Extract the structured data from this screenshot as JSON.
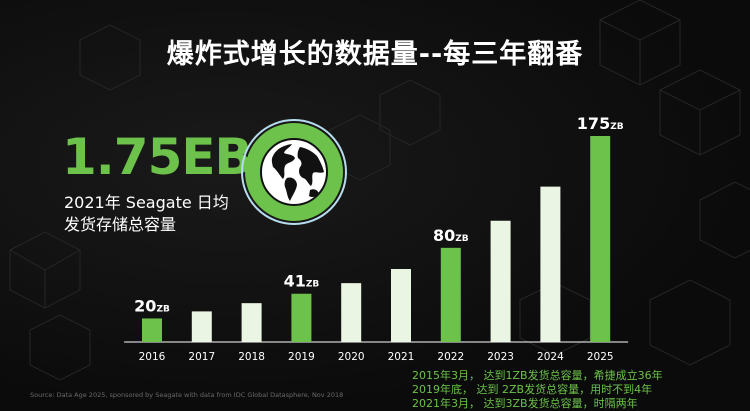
{
  "title": "爆炸式增长的数据量--每三年翻番",
  "stat": {
    "value": "1.75EB",
    "description": "2021年 Seagate 日均发货存储总容量"
  },
  "notes": [
    "2015年3月， 达到1ZB发货总容量，希捷成立36年",
    "2019年底，   达到 2ZB发货总容量，用时不到4年",
    "2021年3月， 达到3ZB发货总容量，时隔两年"
  ],
  "source": "Source: Data Age 2025, sponsored by Seagate with data from IDC Global Datasphere, Nov 2018",
  "colors": {
    "accent": "#6cc24a",
    "bar_light": "#eaf5e3",
    "background": "#0b0b0b"
  },
  "icons": {
    "globe": "globe-icon"
  },
  "chart_data": {
    "type": "bar",
    "categories": [
      "2016",
      "2017",
      "2018",
      "2019",
      "2020",
      "2021",
      "2022",
      "2023",
      "2024",
      "2025"
    ],
    "values": [
      20,
      26,
      33,
      41,
      50,
      62,
      80,
      103,
      132,
      175
    ],
    "unit": "ZB",
    "highlighted": [
      0,
      3,
      6,
      9
    ],
    "data_labels": [
      {
        "index": 0,
        "value": "20",
        "unit": "ZB"
      },
      {
        "index": 3,
        "value": "41",
        "unit": "ZB"
      },
      {
        "index": 6,
        "value": "80",
        "unit": "ZB"
      },
      {
        "index": 9,
        "value": "175",
        "unit": "ZB"
      }
    ],
    "ylim": [
      0,
      175
    ],
    "grid": false,
    "legend": "none"
  }
}
